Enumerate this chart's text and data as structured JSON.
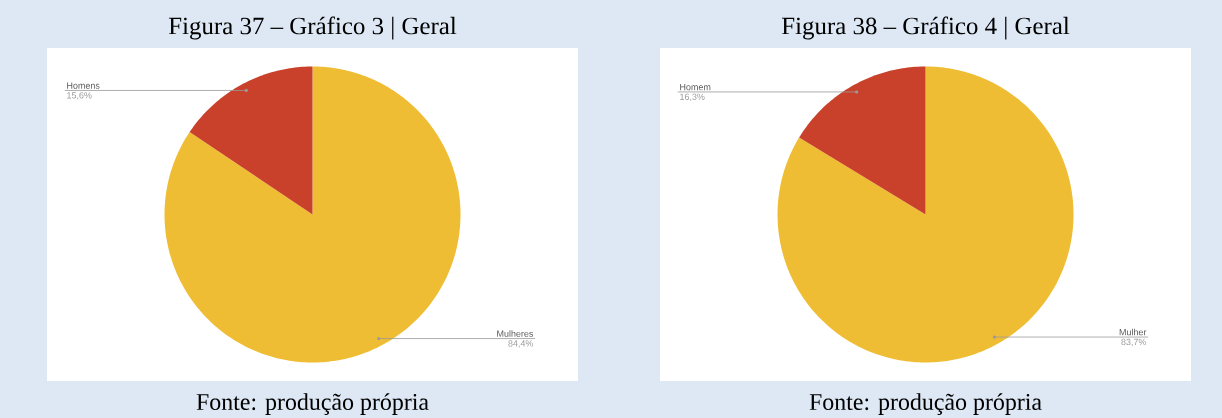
{
  "chart_data": [
    {
      "type": "pie",
      "title": "Figura 37 – Gráfico 3 | Geral",
      "categories": [
        "Mulheres",
        "Homens"
      ],
      "values": [
        84.4,
        15.6
      ],
      "value_labels": [
        "84,4%",
        "15,6%"
      ],
      "colors": [
        "#efbd33",
        "#c9412a"
      ],
      "annotations": [
        "Fonte: produção própria"
      ]
    },
    {
      "type": "pie",
      "title": "Figura 38 – Gráfico 4 | Geral",
      "categories": [
        "Mulher",
        "Homem"
      ],
      "values": [
        83.7,
        16.3
      ],
      "value_labels": [
        "83,7%",
        "16,3%"
      ],
      "colors": [
        "#efbd33",
        "#c9412a"
      ],
      "annotations": [
        "Fonte: produção própria"
      ]
    }
  ]
}
